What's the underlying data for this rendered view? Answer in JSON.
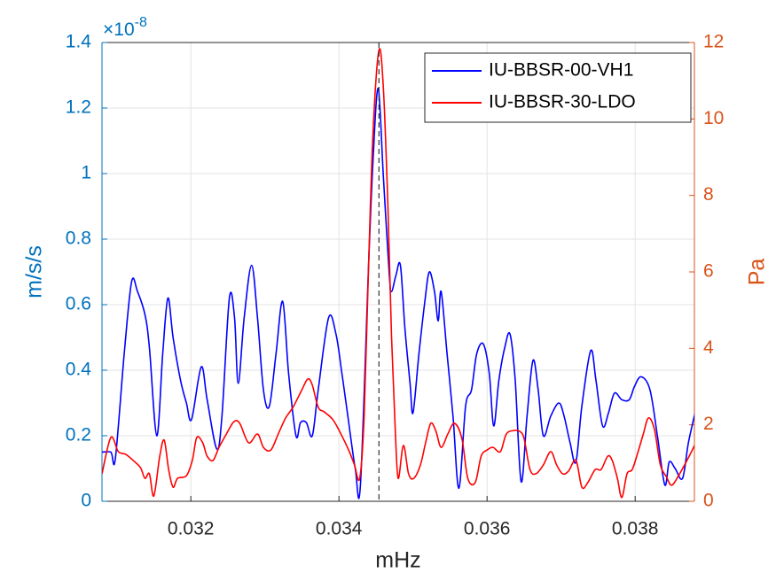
{
  "chart_data": {
    "type": "line",
    "xlabel": "mHz",
    "ylabel": "m/s/s",
    "y2label": "Pa",
    "y_multiplier": "×10",
    "y_multiplier_exponent": "-8",
    "xlim": [
      0.0308,
      0.0388
    ],
    "xticks": [
      0.032,
      0.034,
      0.036,
      0.038
    ],
    "ylim": [
      0,
      1.4
    ],
    "yticks": [
      0,
      0.2,
      0.4,
      0.6,
      0.8,
      1,
      1.2,
      1.4
    ],
    "y2lim": [
      0,
      12
    ],
    "y2ticks": [
      0,
      2,
      4,
      6,
      8,
      10,
      12
    ],
    "grid": true,
    "legend_position": "upper right",
    "y_axis_color": "#0072bd",
    "y2_axis_color": "#d95319",
    "reference_x": 0.03454,
    "series": [
      {
        "name": "IU-BBSR-00-VH1",
        "color": "#0000ff",
        "axis": "y",
        "x": [
          0.0308,
          0.03092,
          0.03098,
          0.0311,
          0.0312,
          0.03128,
          0.03138,
          0.03144,
          0.03154,
          0.03162,
          0.03169,
          0.03176,
          0.03186,
          0.03194,
          0.03201,
          0.03214,
          0.03222,
          0.03235,
          0.03242,
          0.03252,
          0.03259,
          0.03264,
          0.03272,
          0.03282,
          0.0329,
          0.03298,
          0.03306,
          0.03315,
          0.03324,
          0.03332,
          0.03342,
          0.03348,
          0.03356,
          0.03364,
          0.03372,
          0.03386,
          0.03396,
          0.03404,
          0.03412,
          0.03422,
          0.03429,
          0.0344,
          0.03446,
          0.03453,
          0.0346,
          0.03468,
          0.03471,
          0.03477,
          0.03483,
          0.03489,
          0.03496,
          0.035,
          0.03508,
          0.03516,
          0.03522,
          0.03529,
          0.03534,
          0.03538,
          0.03546,
          0.03554,
          0.03562,
          0.03571,
          0.03579,
          0.03586,
          0.03595,
          0.03603,
          0.03609,
          0.03616,
          0.03624,
          0.03631,
          0.03638,
          0.03646,
          0.03654,
          0.03662,
          0.03669,
          0.03676,
          0.03686,
          0.03697,
          0.03704,
          0.03712,
          0.0372,
          0.03728,
          0.0374,
          0.03747,
          0.03756,
          0.03764,
          0.03772,
          0.03782,
          0.03792,
          0.03799,
          0.03808,
          0.0382,
          0.0383,
          0.0384,
          0.03846,
          0.03854,
          0.03864,
          0.03872,
          0.03882
        ],
        "values": [
          0.15,
          0.15,
          0.13,
          0.45,
          0.67,
          0.64,
          0.57,
          0.47,
          0.2,
          0.45,
          0.62,
          0.5,
          0.37,
          0.3,
          0.25,
          0.41,
          0.31,
          0.16,
          0.26,
          0.62,
          0.56,
          0.36,
          0.56,
          0.72,
          0.56,
          0.34,
          0.29,
          0.45,
          0.61,
          0.39,
          0.2,
          0.24,
          0.24,
          0.2,
          0.34,
          0.56,
          0.51,
          0.39,
          0.26,
          0.1,
          0.05,
          0.72,
          1.04,
          1.26,
          0.99,
          0.69,
          0.64,
          0.69,
          0.72,
          0.53,
          0.36,
          0.27,
          0.45,
          0.61,
          0.7,
          0.64,
          0.55,
          0.64,
          0.45,
          0.26,
          0.04,
          0.29,
          0.34,
          0.45,
          0.48,
          0.39,
          0.23,
          0.37,
          0.47,
          0.51,
          0.37,
          0.06,
          0.26,
          0.43,
          0.34,
          0.2,
          0.26,
          0.3,
          0.26,
          0.18,
          0.12,
          0.29,
          0.46,
          0.37,
          0.23,
          0.27,
          0.33,
          0.31,
          0.31,
          0.35,
          0.38,
          0.34,
          0.2,
          0.05,
          0.12,
          0.1,
          0.07,
          0.18,
          0.28
        ]
      },
      {
        "name": "IU-BBSR-30-LDO",
        "color": "#ff0000",
        "axis": "y2",
        "x": [
          0.0308,
          0.03092,
          0.03102,
          0.03112,
          0.03122,
          0.03132,
          0.03138,
          0.03144,
          0.0315,
          0.03158,
          0.03164,
          0.0317,
          0.03176,
          0.03182,
          0.03194,
          0.03202,
          0.03208,
          0.03216,
          0.03222,
          0.0323,
          0.03238,
          0.03248,
          0.03258,
          0.03266,
          0.03278,
          0.0329,
          0.03298,
          0.03308,
          0.03318,
          0.03328,
          0.03338,
          0.0335,
          0.03358,
          0.03364,
          0.03372,
          0.0338,
          0.03392,
          0.03404,
          0.03414,
          0.03421,
          0.03428,
          0.03434,
          0.0344,
          0.03446,
          0.03454,
          0.0346,
          0.03466,
          0.03471,
          0.03476,
          0.0348,
          0.03487,
          0.03494,
          0.03501,
          0.0351,
          0.03517,
          0.03524,
          0.03531,
          0.03538,
          0.03547,
          0.03556,
          0.03566,
          0.03574,
          0.03584,
          0.03592,
          0.036,
          0.03608,
          0.03618,
          0.03626,
          0.03636,
          0.03644,
          0.0365,
          0.03658,
          0.03666,
          0.03676,
          0.03686,
          0.03694,
          0.03702,
          0.0371,
          0.0372,
          0.03728,
          0.03736,
          0.03746,
          0.03754,
          0.03763,
          0.03769,
          0.03776,
          0.03782,
          0.03789,
          0.03796,
          0.03804,
          0.03811,
          0.03818,
          0.03826,
          0.03834,
          0.03842,
          0.03849,
          0.03858,
          0.0387,
          0.03882
        ],
        "values": [
          0.72,
          1.67,
          1.3,
          1.23,
          1.07,
          0.88,
          0.6,
          0.72,
          0.14,
          1.18,
          1.6,
          0.83,
          0.37,
          0.6,
          0.67,
          1.07,
          1.67,
          1.53,
          1.18,
          1.07,
          1.41,
          1.76,
          2.08,
          2.04,
          1.53,
          1.76,
          1.41,
          1.34,
          1.76,
          2.18,
          2.46,
          2.92,
          3.2,
          3.04,
          2.46,
          2.34,
          2.13,
          1.71,
          1.3,
          0.95,
          0.6,
          2.22,
          6.16,
          9.64,
          11.8,
          10.8,
          7.78,
          4.31,
          1.88,
          0.6,
          1.46,
          0.72,
          0.6,
          0.95,
          1.53,
          2.04,
          1.83,
          1.41,
          1.76,
          2.04,
          1.64,
          0.6,
          0.49,
          1.18,
          1.34,
          1.41,
          1.3,
          1.76,
          1.85,
          1.83,
          1.64,
          0.83,
          0.72,
          0.95,
          1.3,
          0.95,
          0.72,
          0.79,
          1.07,
          0.37,
          0.49,
          0.83,
          0.83,
          1.18,
          1.07,
          0.6,
          0.1,
          0.72,
          0.83,
          1.3,
          1.76,
          2.18,
          1.88,
          0.95,
          0.65,
          0.42,
          0.65,
          1.07,
          1.53
        ]
      }
    ]
  }
}
